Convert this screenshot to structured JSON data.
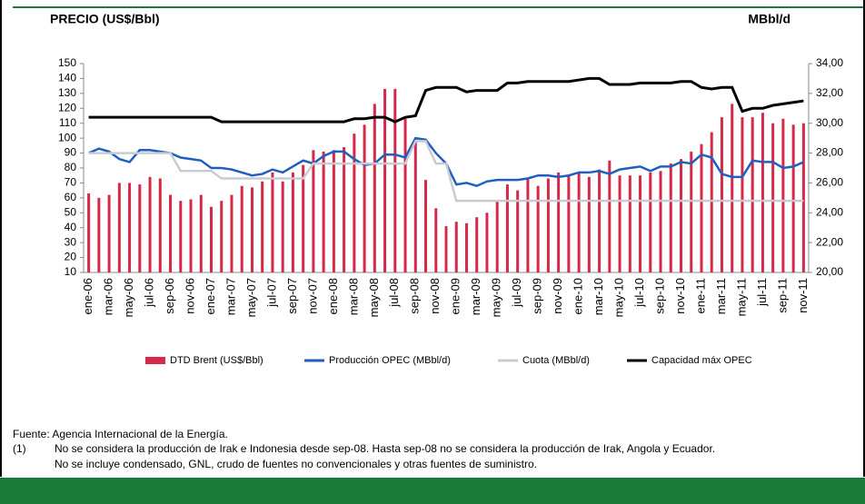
{
  "chart_data": {
    "type": "bar-line",
    "y_label": "PRECIO (US$/Bbl)",
    "y2_label": "MBbl/d",
    "categories": [
      "ene-06",
      null,
      "mar-06",
      null,
      "may-06",
      null,
      "jul-06",
      null,
      "sep-06",
      null,
      "nov-06",
      null,
      "ene-07",
      null,
      "mar-07",
      null,
      "may-07",
      null,
      "jul-07",
      null,
      "sep-07",
      null,
      "nov-07",
      null,
      "ene-08",
      null,
      "mar-08",
      null,
      "may-08",
      null,
      "jul-08",
      null,
      "sep-08",
      null,
      "nov-08",
      null,
      "ene-09",
      null,
      "mar-09",
      null,
      "may-09",
      null,
      "jul-09",
      null,
      "sep-09",
      null,
      "nov-09",
      null,
      "ene-10",
      null,
      "mar-10",
      null,
      "may-10",
      null,
      "jul-10",
      null,
      "sep-10",
      null,
      "nov-10",
      null,
      "ene-11",
      null,
      "mar-11",
      null,
      "may-11",
      null,
      "jul-11",
      null,
      "sep-11",
      null,
      "nov-11"
    ],
    "series": [
      {
        "name": "DTD Brent (US$/Bbl)",
        "type": "bar",
        "color": "#d6294a",
        "values": [
          63,
          60,
          62,
          70,
          70,
          69,
          74,
          73,
          62,
          58,
          59,
          62,
          54,
          58,
          62,
          68,
          67,
          71,
          77,
          71,
          77,
          82,
          92,
          91,
          92,
          94,
          103,
          109,
          123,
          133,
          133,
          113,
          98,
          72,
          53,
          41,
          44,
          43,
          47,
          50,
          58,
          69,
          65,
          73,
          68,
          73,
          77,
          75,
          77,
          74,
          79,
          85,
          75,
          75,
          75,
          77,
          78,
          83,
          86,
          91,
          96,
          104,
          114,
          123,
          114,
          114,
          117,
          110,
          113,
          109,
          110
        ]
      },
      {
        "name": "Producción OPEC (MBbl/d)",
        "type": "line",
        "axis": "y2",
        "color": "#1f5fbf",
        "values": [
          28.0,
          28.3,
          28.1,
          27.6,
          27.4,
          28.2,
          28.2,
          28.1,
          28.0,
          27.7,
          27.6,
          27.5,
          27.0,
          27.0,
          26.9,
          26.7,
          26.5,
          26.6,
          26.9,
          26.7,
          27.1,
          27.5,
          27.3,
          27.8,
          28.1,
          28.1,
          27.6,
          27.2,
          27.3,
          27.9,
          27.9,
          27.7,
          29.0,
          28.9,
          28.0,
          27.3,
          25.9,
          26.0,
          25.8,
          26.1,
          26.2,
          26.2,
          26.2,
          26.3,
          26.5,
          26.5,
          26.4,
          26.5,
          26.7,
          26.7,
          26.8,
          26.6,
          26.9,
          27.0,
          27.1,
          26.8,
          27.1,
          27.1,
          27.4,
          27.3,
          27.9,
          27.7,
          26.6,
          26.4,
          26.4,
          27.5,
          27.4,
          27.4,
          27.0,
          27.1,
          27.4
        ]
      },
      {
        "name": "Cuota (MBbl/d)",
        "type": "line",
        "axis": "y2",
        "color": "#c8ccd0",
        "values": [
          28,
          28,
          28,
          28,
          28,
          28,
          28,
          28,
          28,
          26.8,
          26.8,
          26.8,
          26.8,
          26.3,
          26.3,
          26.3,
          26.3,
          26.3,
          26.3,
          26.3,
          26.3,
          26.3,
          27.3,
          27.3,
          27.3,
          27.3,
          27.3,
          27.3,
          27.3,
          27.3,
          27.3,
          27.3,
          28.8,
          28.8,
          27.3,
          27.3,
          24.8,
          24.8,
          24.8,
          24.8,
          24.8,
          24.8,
          24.8,
          24.8,
          24.8,
          24.8,
          24.8,
          24.8,
          24.8,
          24.8,
          24.8,
          24.8,
          24.8,
          24.8,
          24.8,
          24.8,
          24.8,
          24.8,
          24.8,
          24.8,
          24.8,
          24.8,
          24.8,
          24.8,
          24.8,
          24.8,
          24.8,
          24.8,
          24.8,
          24.8,
          24.8
        ]
      },
      {
        "name": "Capacidad máx OPEC",
        "type": "line",
        "axis": "y2",
        "color": "#000000",
        "values": [
          30.4,
          30.4,
          30.4,
          30.4,
          30.4,
          30.4,
          30.4,
          30.4,
          30.4,
          30.4,
          30.4,
          30.4,
          30.4,
          30.1,
          30.1,
          30.1,
          30.1,
          30.1,
          30.1,
          30.1,
          30.1,
          30.1,
          30.1,
          30.1,
          30.1,
          30.1,
          30.3,
          30.3,
          30.4,
          30.4,
          30.1,
          30.4,
          30.5,
          32.2,
          32.4,
          32.4,
          32.4,
          32.1,
          32.2,
          32.2,
          32.2,
          32.7,
          32.7,
          32.8,
          32.8,
          32.8,
          32.8,
          32.8,
          32.9,
          33.0,
          33.0,
          32.6,
          32.6,
          32.6,
          32.7,
          32.7,
          32.7,
          32.7,
          32.8,
          32.8,
          32.4,
          32.3,
          32.4,
          32.4,
          30.8,
          31.0,
          31.0,
          31.2,
          31.3,
          31.4,
          31.5
        ]
      }
    ],
    "ylim": [
      10,
      150
    ],
    "yticks": [
      10,
      20,
      30,
      40,
      50,
      60,
      70,
      80,
      90,
      100,
      110,
      120,
      130,
      140,
      150
    ],
    "y2lim": [
      20,
      34
    ],
    "y2ticks": [
      {
        "value": 20,
        "label": "20,00"
      },
      {
        "value": 22,
        "label": "22,00"
      },
      {
        "value": 24,
        "label": "24,00"
      },
      {
        "value": 26,
        "label": "26,00"
      },
      {
        "value": 28,
        "label": "28,00"
      },
      {
        "value": 30,
        "label": "30,00"
      },
      {
        "value": 32,
        "label": "32,00"
      },
      {
        "value": 34,
        "label": "34,00"
      }
    ]
  },
  "footnotes": {
    "source": "Fuente: Agencia Internacional de la Energía.",
    "marker": "(1)",
    "note_line1": "No se considera la producción de Irak e Indonesia desde sep-08. Hasta sep-08 no se considera la producción de Irak, Angola y Ecuador.",
    "note_line2": "No se incluye condensado, GNL, crudo de fuentes no convencionales y otras fuentes de suministro."
  }
}
